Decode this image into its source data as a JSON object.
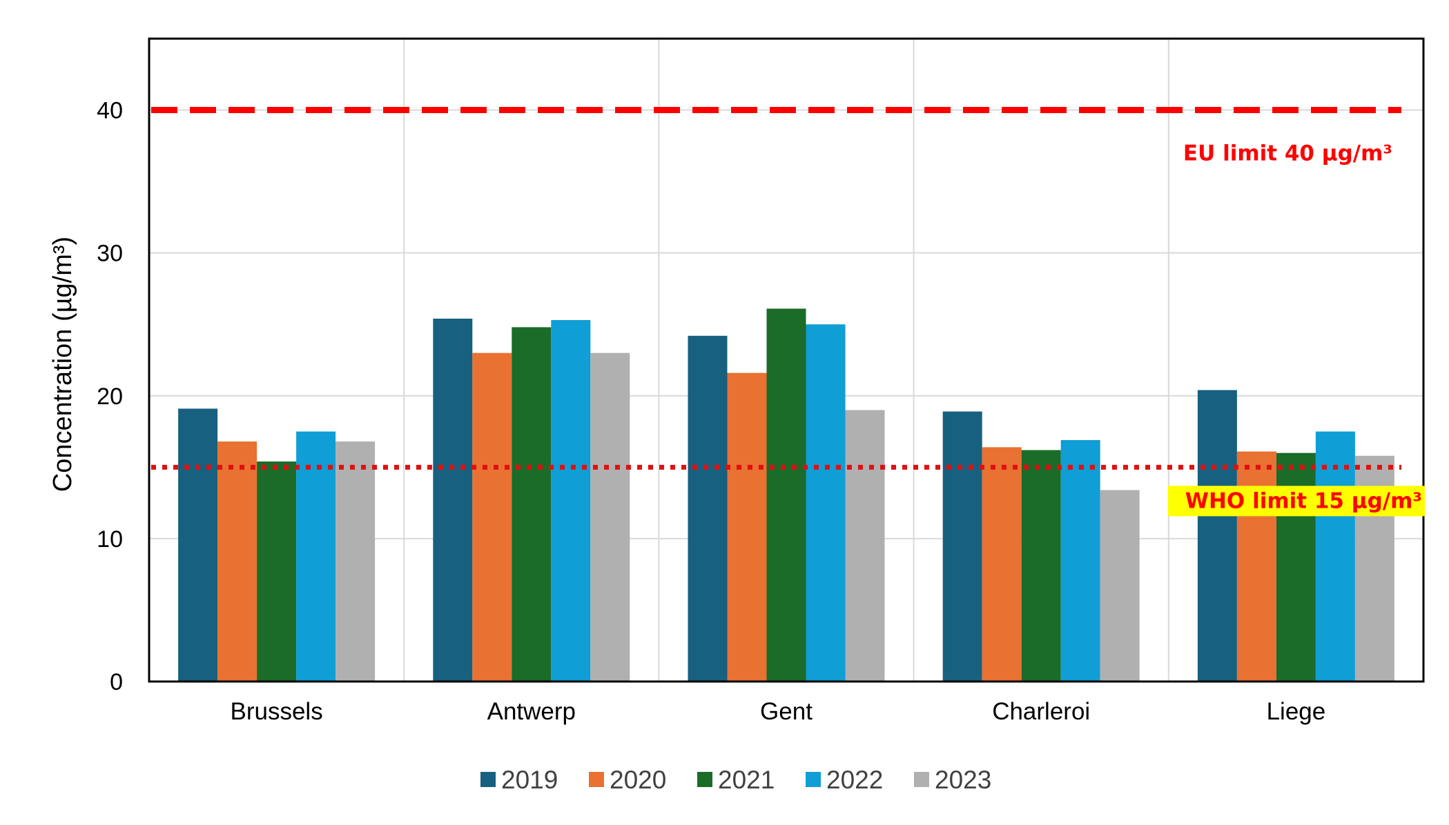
{
  "chart_data": {
    "type": "bar",
    "ylabel": "Concentration (µg/m³)",
    "ylim": [
      0,
      45
    ],
    "yticks": [
      0,
      10,
      20,
      30,
      40
    ],
    "grid": true,
    "legend_position": "bottom",
    "categories": [
      "Brussels",
      "Antwerp",
      "Gent",
      "Charleroi",
      "Liege"
    ],
    "series": [
      {
        "name": "2019",
        "color": "#17607f",
        "values": [
          19.1,
          25.4,
          24.2,
          18.9,
          20.4
        ]
      },
      {
        "name": "2020",
        "color": "#e97132",
        "values": [
          16.8,
          23.0,
          21.6,
          16.4,
          16.1
        ]
      },
      {
        "name": "2021",
        "color": "#1b6b29",
        "values": [
          15.4,
          24.8,
          26.1,
          16.2,
          16.0
        ]
      },
      {
        "name": "2022",
        "color": "#0f9ed5",
        "values": [
          17.5,
          25.3,
          25.0,
          16.9,
          17.5
        ]
      },
      {
        "name": "2023",
        "color": "#b0b0b0",
        "values": [
          16.8,
          23.0,
          19.0,
          13.4,
          15.8
        ]
      }
    ],
    "reference_lines": [
      {
        "label": "EU limit 40 µg/m³",
        "value": 40,
        "style": "dashed",
        "color": "#ff0000"
      },
      {
        "label": "WHO limit 15 µg/m³",
        "value": 15,
        "style": "dotted",
        "color": "#e01010",
        "highlight": "#ffff00"
      }
    ]
  }
}
